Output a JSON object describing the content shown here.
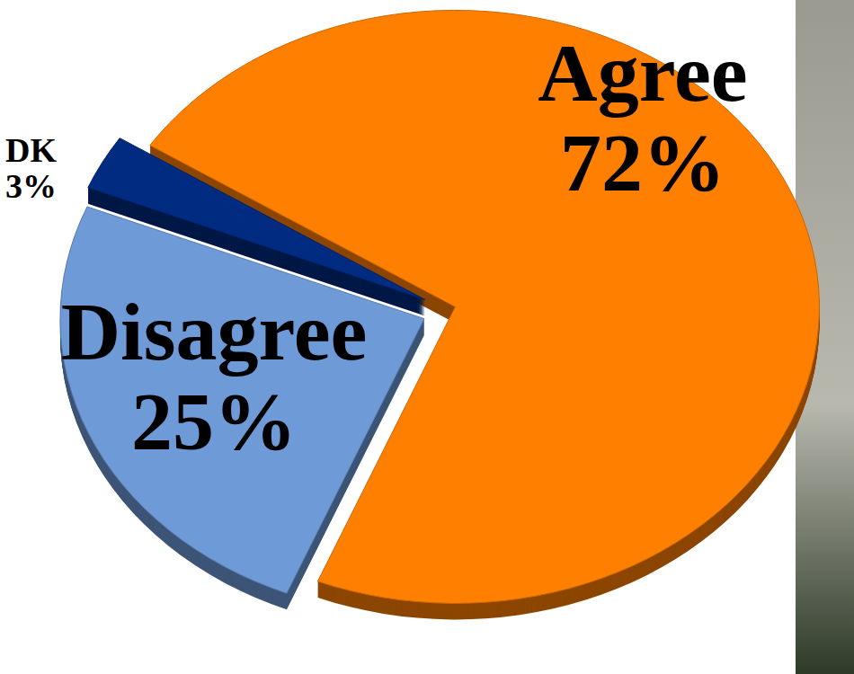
{
  "chart_data": {
    "type": "pie",
    "categories": [
      "Agree",
      "Disagree",
      "DK"
    ],
    "values": [
      72,
      25,
      3
    ],
    "value_labels": [
      "72%",
      "25%",
      "3%"
    ],
    "colors": [
      "#ff8000",
      "#6f9ad8",
      "#002b80"
    ],
    "data_labels": true
  }
}
